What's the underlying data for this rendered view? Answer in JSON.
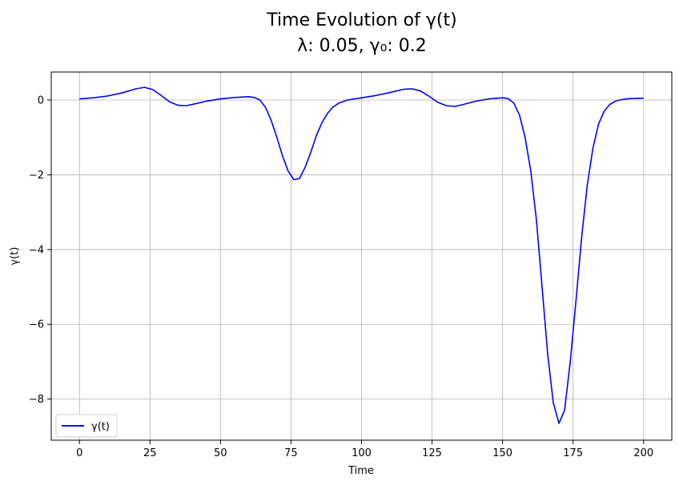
{
  "chart_data": {
    "type": "line",
    "title_line1": "Time Evolution of γ(t)",
    "title_line2": "λ: 0.05, γ₀: 0.2",
    "xlabel": "Time",
    "ylabel": "γ(t)",
    "xlim": [
      -10,
      210
    ],
    "ylim": [
      -9.1,
      0.75
    ],
    "xticks": [
      0,
      25,
      50,
      75,
      100,
      125,
      150,
      175,
      200
    ],
    "xtick_labels": [
      "0",
      "25",
      "50",
      "75",
      "100",
      "125",
      "150",
      "175",
      "200"
    ],
    "yticks": [
      0,
      -2,
      -4,
      -6,
      -8
    ],
    "ytick_labels": [
      "0",
      "−2",
      "−4",
      "−6",
      "−8"
    ],
    "grid": true,
    "legend_position": "lower-left",
    "series": [
      {
        "name": "γ(t)",
        "color": "#0000ff",
        "x": [
          0,
          5,
          10,
          15,
          20,
          23,
          26,
          29,
          32,
          35,
          38,
          41,
          45,
          50,
          55,
          60,
          62,
          64,
          66,
          68,
          70,
          72,
          74,
          76,
          78,
          80,
          82,
          84,
          86,
          88,
          90,
          92,
          95,
          100,
          105,
          110,
          115,
          118,
          121,
          124,
          127,
          130,
          133,
          136,
          140,
          145,
          150,
          152,
          154,
          156,
          158,
          160,
          162,
          164,
          166,
          168,
          170,
          172,
          174,
          176,
          178,
          180,
          182,
          184,
          186,
          188,
          190,
          192,
          195,
          200
        ],
        "y": [
          0.03,
          0.06,
          0.11,
          0.19,
          0.3,
          0.34,
          0.28,
          0.12,
          -0.05,
          -0.14,
          -0.15,
          -0.1,
          -0.03,
          0.03,
          0.07,
          0.09,
          0.07,
          0.0,
          -0.2,
          -0.55,
          -1.0,
          -1.5,
          -1.9,
          -2.13,
          -2.1,
          -1.8,
          -1.4,
          -0.95,
          -0.6,
          -0.35,
          -0.18,
          -0.08,
          0.0,
          0.06,
          0.12,
          0.2,
          0.29,
          0.3,
          0.24,
          0.1,
          -0.06,
          -0.15,
          -0.17,
          -0.12,
          -0.04,
          0.03,
          0.06,
          0.04,
          -0.08,
          -0.4,
          -1.0,
          -1.9,
          -3.2,
          -5.0,
          -6.8,
          -8.1,
          -8.65,
          -8.3,
          -7.0,
          -5.4,
          -3.7,
          -2.3,
          -1.3,
          -0.65,
          -0.3,
          -0.12,
          -0.03,
          0.01,
          0.04,
          0.05
        ]
      }
    ]
  }
}
